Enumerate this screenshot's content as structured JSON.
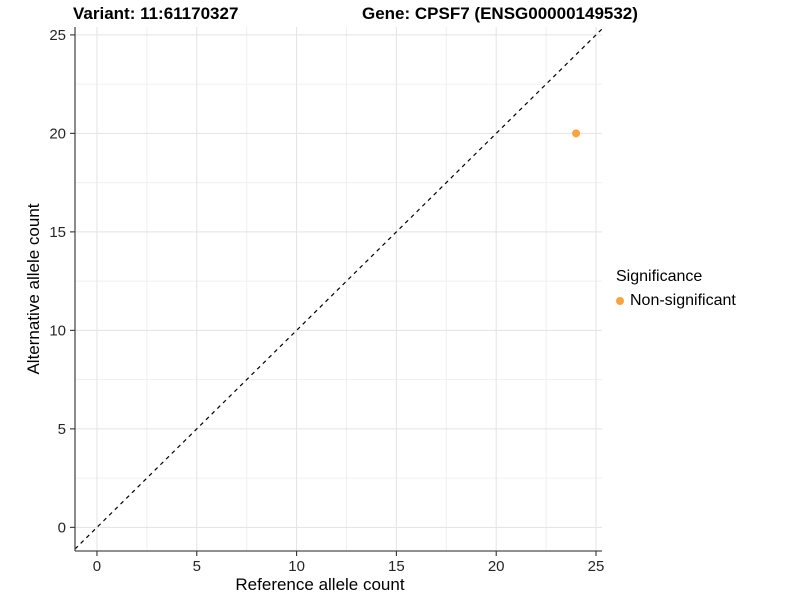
{
  "chart_data": {
    "type": "scatter",
    "title_left": "Variant: 11:61170327",
    "title_right": "Gene: CPSF7 (ENSG00000149532)",
    "xlabel": "Reference allele count",
    "ylabel": "Alternative allele count",
    "xlim": [
      -1.1,
      25.3
    ],
    "ylim": [
      -1.2,
      25.4
    ],
    "xticks": [
      0,
      5,
      10,
      15,
      20,
      25
    ],
    "yticks": [
      0,
      5,
      10,
      15,
      20,
      25
    ],
    "minor_xticks": [
      2.5,
      7.5,
      12.5,
      17.5,
      22.5
    ],
    "minor_yticks": [
      2.5,
      7.5,
      12.5,
      17.5,
      22.5
    ],
    "grid": true,
    "points": [
      {
        "x": 24,
        "y": 20,
        "series": "Non-significant"
      }
    ],
    "reference_line": {
      "type": "identity",
      "slope": 1,
      "intercept": 0,
      "style": "dashed",
      "color": "#000000"
    },
    "legend": {
      "title": "Significance",
      "position": "right",
      "entries": [
        {
          "label": "Non-significant",
          "color": "#F9A440"
        }
      ]
    },
    "style": {
      "background": "#FFFFFF",
      "grid_major": "#E3E3E3",
      "grid_minor": "#F0F0F0",
      "axis_line": "#4D4D4D",
      "tick_color": "#333333",
      "tick_text": "#262626",
      "point_color": "#F9A440",
      "point_radius": 4
    }
  }
}
